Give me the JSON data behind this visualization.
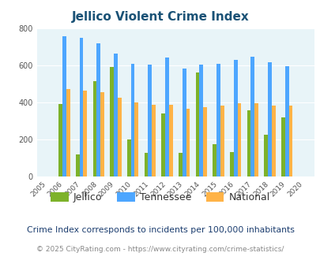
{
  "title": "Jellico Violent Crime Index",
  "years": [
    2005,
    2006,
    2007,
    2008,
    2009,
    2010,
    2011,
    2012,
    2013,
    2014,
    2015,
    2016,
    2017,
    2018,
    2019,
    2020
  ],
  "jellico": [
    null,
    395,
    120,
    515,
    595,
    200,
    130,
    340,
    130,
    565,
    175,
    135,
    360,
    228,
    320,
    null
  ],
  "tennessee": [
    null,
    760,
    750,
    720,
    665,
    610,
    607,
    645,
    585,
    607,
    610,
    632,
    650,
    620,
    598,
    null
  ],
  "national": [
    null,
    472,
    467,
    455,
    428,
    402,
    387,
    387,
    367,
    376,
    383,
    398,
    398,
    383,
    383,
    null
  ],
  "jellico_color": "#7db22a",
  "tennessee_color": "#4da6ff",
  "national_color": "#ffb347",
  "bg_color": "#e8f4f8",
  "ylim": [
    0,
    800
  ],
  "yticks": [
    0,
    200,
    400,
    600,
    800
  ],
  "footnote": "Crime Index corresponds to incidents per 100,000 inhabitants",
  "copyright": "© 2025 CityRating.com - https://www.cityrating.com/crime-statistics/",
  "bar_width": 0.22,
  "title_color": "#1a5276",
  "footnote_color": "#1a3c6e",
  "copyright_color": "#888888",
  "link_color": "#2e7fc2"
}
